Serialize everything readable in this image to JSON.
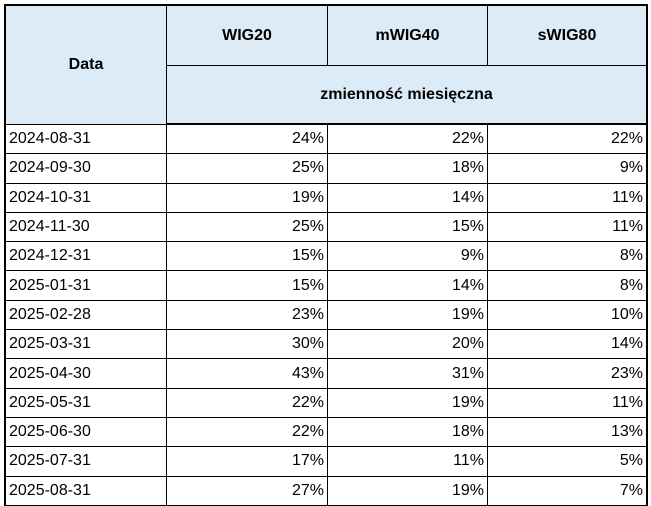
{
  "header": {
    "date_label": "Data",
    "columns": [
      "WIG20",
      "mWIG40",
      "sWIG80"
    ],
    "subheader": "zmienność miesięczna"
  },
  "table": {
    "rows": [
      [
        "2024-08-31",
        "24%",
        "22%",
        "22%"
      ],
      [
        "2024-09-30",
        "25%",
        "18%",
        "9%"
      ],
      [
        "2024-10-31",
        "19%",
        "14%",
        "11%"
      ],
      [
        "2024-11-30",
        "25%",
        "15%",
        "11%"
      ],
      [
        "2024-12-31",
        "15%",
        "9%",
        "8%"
      ],
      [
        "2025-01-31",
        "15%",
        "14%",
        "8%"
      ],
      [
        "2025-02-28",
        "23%",
        "19%",
        "10%"
      ],
      [
        "2025-03-31",
        "30%",
        "20%",
        "14%"
      ],
      [
        "2025-04-30",
        "43%",
        "31%",
        "23%"
      ],
      [
        "2025-05-31",
        "22%",
        "19%",
        "11%"
      ],
      [
        "2025-06-30",
        "22%",
        "18%",
        "13%"
      ],
      [
        "2025-07-31",
        "17%",
        "11%",
        "5%"
      ],
      [
        "2025-08-31",
        "27%",
        "19%",
        "7%"
      ]
    ]
  }
}
